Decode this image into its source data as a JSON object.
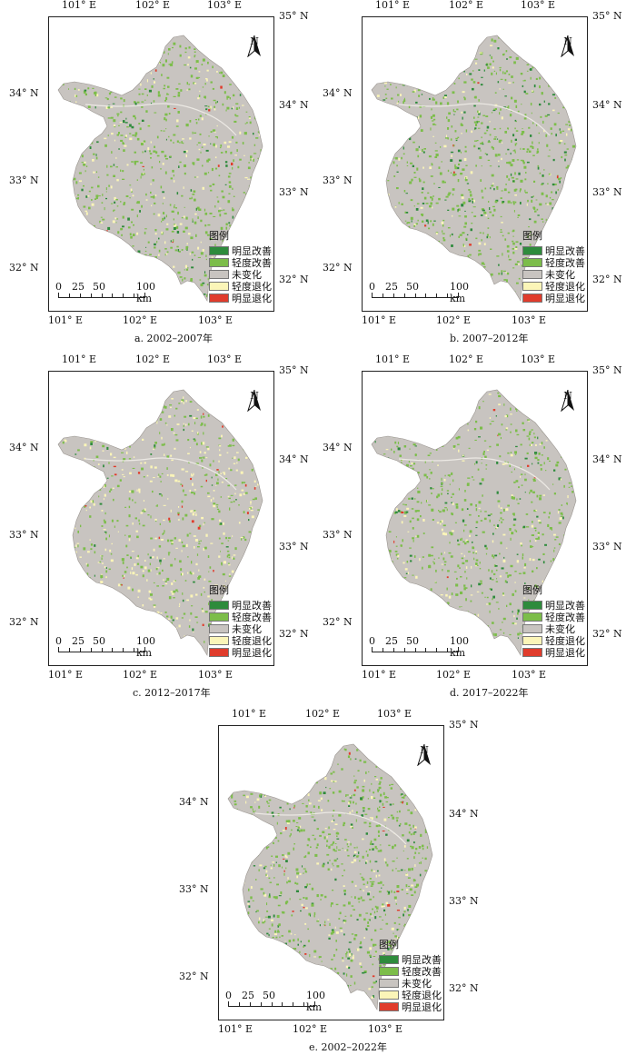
{
  "lon_labels": [
    "101° E",
    "102° E",
    "103° E"
  ],
  "lat_labels": [
    "35° N",
    "34° N",
    "33° N",
    "32° N"
  ],
  "north_label": "N",
  "legend": {
    "title": "图例",
    "items": [
      {
        "label": "明显改善",
        "color": "#2e8b3c"
      },
      {
        "label": "轻度改善",
        "color": "#7cbd4a"
      },
      {
        "label": "未变化",
        "color": "#c8c4c0"
      },
      {
        "label": "轻度退化",
        "color": "#fbf5b8"
      },
      {
        "label": "明显退化",
        "color": "#e03c2c"
      }
    ]
  },
  "scale_bar": {
    "labels": [
      "0",
      "25",
      "50",
      "100 km"
    ]
  },
  "panels": [
    {
      "caption": "a.  2002–2007年",
      "green": 0.3,
      "deep": 0.05,
      "yellow": 0.08,
      "red": 0.004
    },
    {
      "caption": "b.  2007–2012年",
      "green": 0.34,
      "deep": 0.08,
      "yellow": 0.05,
      "red": 0.004
    },
    {
      "caption": "c.  2012–2017年",
      "green": 0.22,
      "deep": 0.03,
      "yellow": 0.18,
      "red": 0.015
    },
    {
      "caption": "d.  2017–2022年",
      "green": 0.3,
      "deep": 0.06,
      "yellow": 0.06,
      "red": 0.006
    },
    {
      "caption": "e.  2002–2022年",
      "green": 0.36,
      "deep": 0.07,
      "yellow": 0.08,
      "red": 0.008
    }
  ]
}
